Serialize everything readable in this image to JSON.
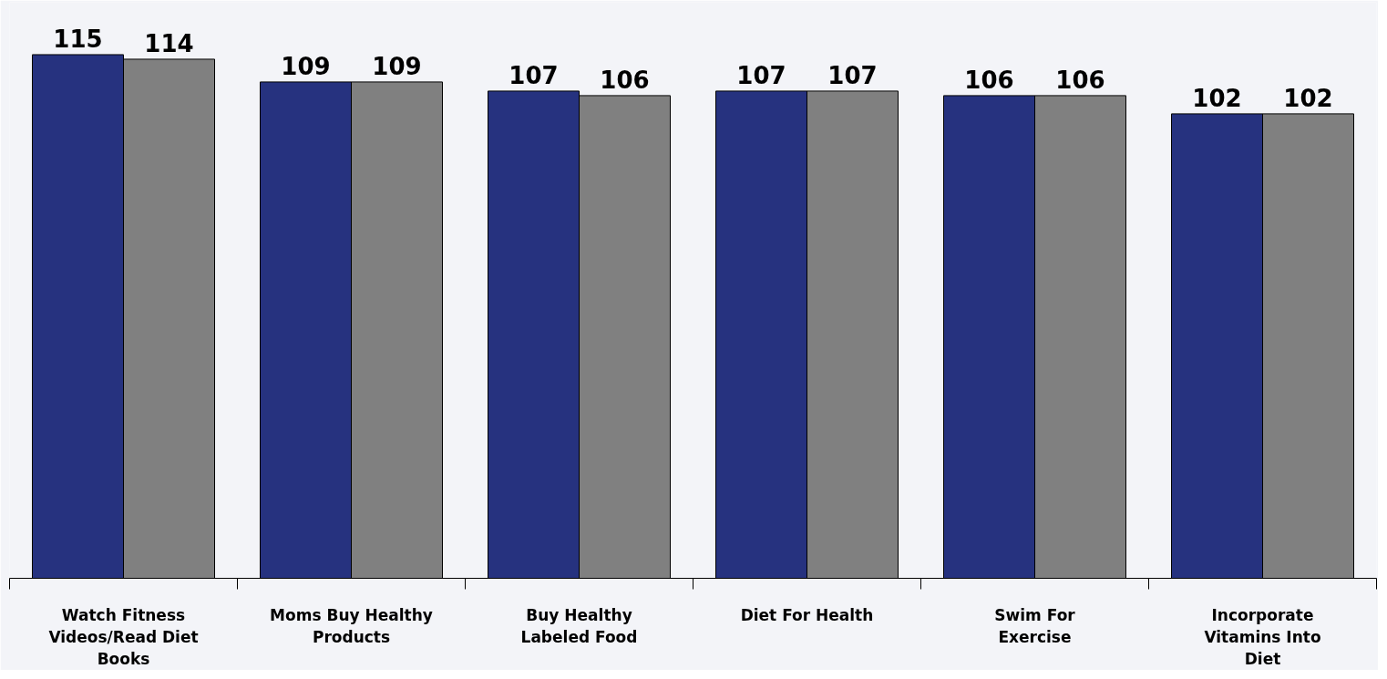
{
  "chart_data": {
    "type": "bar",
    "categories": [
      "Watch Fitness Videos/Read Diet Books",
      "Moms Buy Healthy Products",
      "Buy Healthy Labeled Food",
      "Diet For Health",
      "Swim For Exercise",
      "Incorporate Vitamins Into Diet"
    ],
    "series": [
      {
        "color": "#26327f",
        "values": [
          115,
          109,
          107,
          107,
          106,
          102
        ]
      },
      {
        "color": "#808080",
        "values": [
          114,
          109,
          106,
          107,
          106,
          102
        ]
      }
    ],
    "data_labels": true,
    "grid": false
  }
}
